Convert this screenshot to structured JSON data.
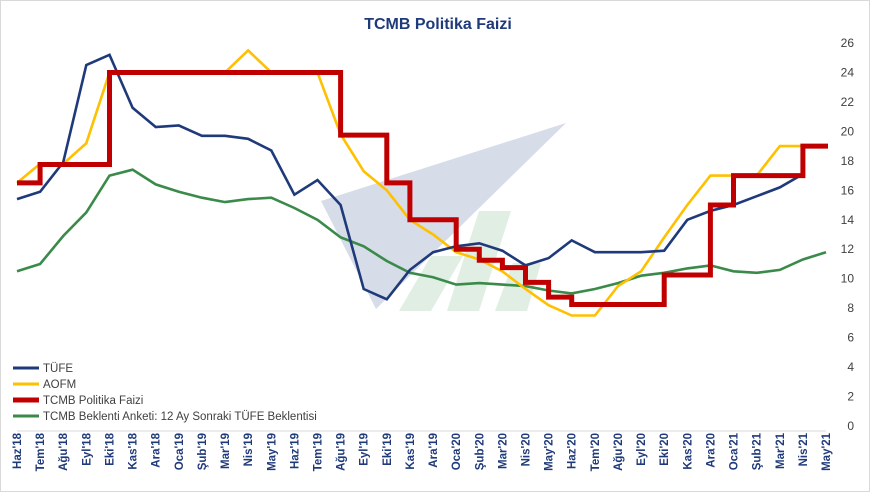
{
  "chart_data": {
    "type": "line",
    "title": "TCMB Politika Faizi",
    "xlabel": "",
    "ylabel": "",
    "ylim": [
      0,
      26
    ],
    "yticks": [
      0,
      2,
      4,
      6,
      8,
      10,
      12,
      14,
      16,
      18,
      20,
      22,
      24,
      26
    ],
    "y_axis_side": "right",
    "grid": false,
    "legend_position": "bottom-left",
    "x": [
      "Haz'18",
      "Tem'18",
      "Ağu'18",
      "Eyl'18",
      "Eki'18",
      "Kas'18",
      "Ara'18",
      "Oca'19",
      "Şub'19",
      "Mar'19",
      "Nis'19",
      "May'19",
      "Haz'19",
      "Tem'19",
      "Ağu'19",
      "Eyl'19",
      "Eki'19",
      "Kas'19",
      "Ara'19",
      "Oca'20",
      "Şub'20",
      "Mar'20",
      "Nis'20",
      "May'20",
      "Haz'20",
      "Tem'20",
      "Ağu'20",
      "Eyl'20",
      "Eki'20",
      "Kas'20",
      "Ara'20",
      "Oca'21",
      "Şub'21",
      "Mar'21",
      "Nis'21",
      "May'21"
    ],
    "series": [
      {
        "name": "TÜFE",
        "color": "#1f3a7a",
        "step": false,
        "values": [
          15.4,
          15.9,
          17.9,
          24.5,
          25.2,
          21.6,
          20.3,
          20.4,
          19.7,
          19.7,
          19.5,
          18.7,
          15.7,
          16.7,
          15.0,
          9.3,
          8.6,
          10.6,
          11.8,
          12.2,
          12.4,
          11.9,
          10.9,
          11.4,
          12.6,
          11.8,
          11.8,
          11.8,
          11.9,
          14.0,
          14.6,
          15.0,
          15.6,
          16.2,
          17.1,
          null
        ]
      },
      {
        "name": "AOFM",
        "color": "#ffc000",
        "step": false,
        "values": [
          16.5,
          17.8,
          17.8,
          19.2,
          24.0,
          24.0,
          24.0,
          24.0,
          24.0,
          24.0,
          25.5,
          24.0,
          24.0,
          24.0,
          19.8,
          17.3,
          16.0,
          14.0,
          13.0,
          11.8,
          11.3,
          10.5,
          9.3,
          8.2,
          7.5,
          7.5,
          9.5,
          10.5,
          12.8,
          15.0,
          17.0,
          17.0,
          17.0,
          19.0,
          19.0,
          19.0
        ]
      },
      {
        "name": "TCMB Politika Faizi",
        "color": "#c00000",
        "step": true,
        "values": [
          16.5,
          17.75,
          17.75,
          17.75,
          24.0,
          24.0,
          24.0,
          24.0,
          24.0,
          24.0,
          24.0,
          24.0,
          24.0,
          24.0,
          19.75,
          19.75,
          16.5,
          14.0,
          14.0,
          12.0,
          11.25,
          10.75,
          9.75,
          8.75,
          8.25,
          8.25,
          8.25,
          8.25,
          10.25,
          10.25,
          15.0,
          17.0,
          17.0,
          17.0,
          19.0,
          19.0
        ]
      },
      {
        "name": "TCMB Beklenti Anketi: 12 Ay Sonraki TÜFE Beklentisi",
        "color": "#3a8a4a",
        "step": false,
        "values": [
          10.5,
          11.0,
          12.9,
          14.5,
          17.0,
          17.4,
          16.4,
          15.9,
          15.5,
          15.2,
          15.4,
          15.5,
          14.8,
          14.0,
          12.8,
          12.2,
          11.2,
          10.4,
          10.1,
          9.6,
          9.7,
          9.6,
          9.5,
          9.2,
          9.0,
          9.3,
          9.7,
          10.2,
          10.4,
          10.7,
          10.9,
          10.5,
          10.4,
          10.6,
          11.3,
          11.8
        ]
      }
    ]
  }
}
